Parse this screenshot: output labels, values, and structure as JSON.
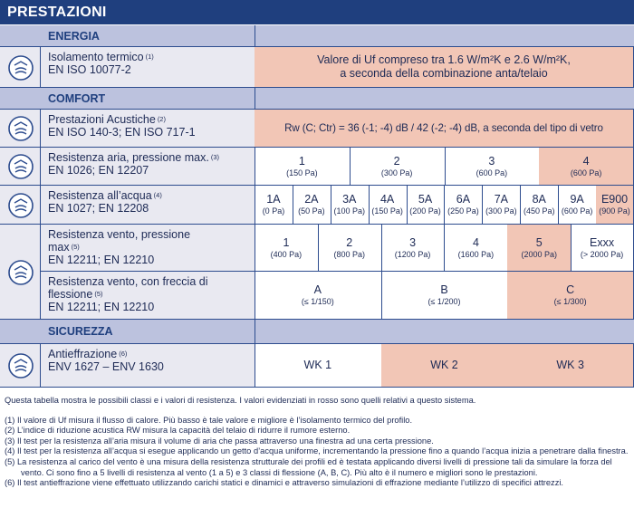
{
  "header": {
    "title": "PRESTAZIONI"
  },
  "sections": [
    {
      "title": "ENERGIA",
      "rows": [
        {
          "label": [
            "Isolamento termico"
          ],
          "note": "(1)",
          "standard": "EN ISO 10077-2",
          "cells": [
            {
              "lines": [
                "Valore di Uf compreso tra 1.6 W/m²K e 2.6 W/m²K,",
                "a seconda della combinazione anta/telaio"
              ],
              "highlighted": true
            }
          ]
        }
      ]
    },
    {
      "title": "COMFORT",
      "rows": [
        {
          "label": [
            "Prestazioni Acustiche"
          ],
          "note": "(2)",
          "standard": "EN ISO 140-3; EN ISO 717-1",
          "cells": [
            {
              "lines": [
                "Rw (C; Ctr) = 36 (-1; -4) dB / 42 (-2; -4) dB, a seconda del tipo di vetro"
              ],
              "highlighted": true
            }
          ]
        },
        {
          "label": [
            "Resistenza aria, pressione max."
          ],
          "note": "(3)",
          "standard": "EN 1026; EN 12207",
          "cells": [
            {
              "value": "1",
              "sub": "(150 Pa)",
              "highlighted": false
            },
            {
              "value": "2",
              "sub": "(300 Pa)",
              "highlighted": false
            },
            {
              "value": "3",
              "sub": "(600 Pa)",
              "highlighted": false
            },
            {
              "value": "4",
              "sub": "(600 Pa)",
              "highlighted": true
            }
          ]
        },
        {
          "label": [
            "Resistenza all’acqua"
          ],
          "note": "(4)",
          "standard": "EN 1027; EN 12208",
          "cells": [
            {
              "value": "1A",
              "sub": "(0 Pa)",
              "highlighted": false
            },
            {
              "value": "2A",
              "sub": "(50 Pa)",
              "highlighted": false
            },
            {
              "value": "3A",
              "sub": "(100 Pa)",
              "highlighted": false
            },
            {
              "value": "4A",
              "sub": "(150 Pa)",
              "highlighted": false
            },
            {
              "value": "5A",
              "sub": "(200 Pa)",
              "highlighted": false
            },
            {
              "value": "6A",
              "sub": "(250 Pa)",
              "highlighted": false
            },
            {
              "value": "7A",
              "sub": "(300 Pa)",
              "highlighted": false
            },
            {
              "value": "8A",
              "sub": "(450 Pa)",
              "highlighted": false
            },
            {
              "value": "9A",
              "sub": "(600 Pa)",
              "highlighted": false
            },
            {
              "value": "E900",
              "sub": "(900 Pa)",
              "highlighted": true
            }
          ]
        },
        {
          "label": [
            "Resistenza vento, pressione",
            "max"
          ],
          "note": "(5)",
          "standard": "EN 12211; EN 12210",
          "cells": [
            {
              "value": "1",
              "sub": "(400 Pa)",
              "highlighted": false
            },
            {
              "value": "2",
              "sub": "(800 Pa)",
              "highlighted": false
            },
            {
              "value": "3",
              "sub": "(1200 Pa)",
              "highlighted": false
            },
            {
              "value": "4",
              "sub": "(1600 Pa)",
              "highlighted": false
            },
            {
              "value": "5",
              "sub": "(2000 Pa)",
              "highlighted": true
            },
            {
              "value": "Exxx",
              "sub": "(> 2000 Pa)",
              "highlighted": false
            }
          ]
        },
        {
          "label": [
            "Resistenza vento, con freccia di",
            "flessione"
          ],
          "note": "(5)",
          "standard": "EN 12211; EN 12210",
          "cells": [
            {
              "value": "A",
              "sub": "(≤ 1/150)",
              "highlighted": false
            },
            {
              "value": "B",
              "sub": "(≤ 1/200)",
              "highlighted": false
            },
            {
              "value": "C",
              "sub": "(≤ 1/300)",
              "highlighted": true
            }
          ]
        }
      ]
    },
    {
      "title": "SICUREZZA",
      "rows": [
        {
          "label": [
            "Antieffrazione"
          ],
          "note": "(6)",
          "standard": "ENV 1627 – ENV 1630",
          "cells": [
            {
              "value": "WK 1",
              "highlighted": false
            },
            {
              "value": "WK 2",
              "highlighted": true
            },
            {
              "value": "WK 3",
              "highlighted": true
            }
          ]
        }
      ]
    }
  ],
  "intro": "Questa tabella mostra le possibili classi e i valori di resistenza. I valori evidenziati in rosso sono quelli relativi a questo sistema.",
  "footnotes": [
    "(1) Il valore di Uf misura il flusso di calore. Più basso è tale valore e migliore è l’isolamento termico del profilo.",
    "(2) L’indice di riduzione acustica RW misura la capacità del telaio di ridurre il rumore esterno.",
    "(3) Il test per la resistenza all’aria misura il volume di aria che passa attraverso una finestra ad una certa pressione.",
    "(4) Il test per la resistenza all’acqua si esegue applicando un getto d’acqua uniforme, incrementando la pressione fino a quando l’acqua inizia a penetrare dalla finestra.",
    "(5) La resistenza al carico del vento è una misura della resistenza strutturale dei profili ed è testata applicando diversi livelli di pressione tali da simulare la forza del vento. Ci sono fino a 5 livelli di resistenza al vento (1 a 5) e 3 classi di flessione (A, B, C). Più alto è il numero e migliori sono le prestazioni.",
    "(6) Il test antieffrazione viene effettuato utilizzando carichi statici e dinamici e attraverso simulazioni di effrazione mediante l’utilizzo di specifici attrezzi."
  ]
}
